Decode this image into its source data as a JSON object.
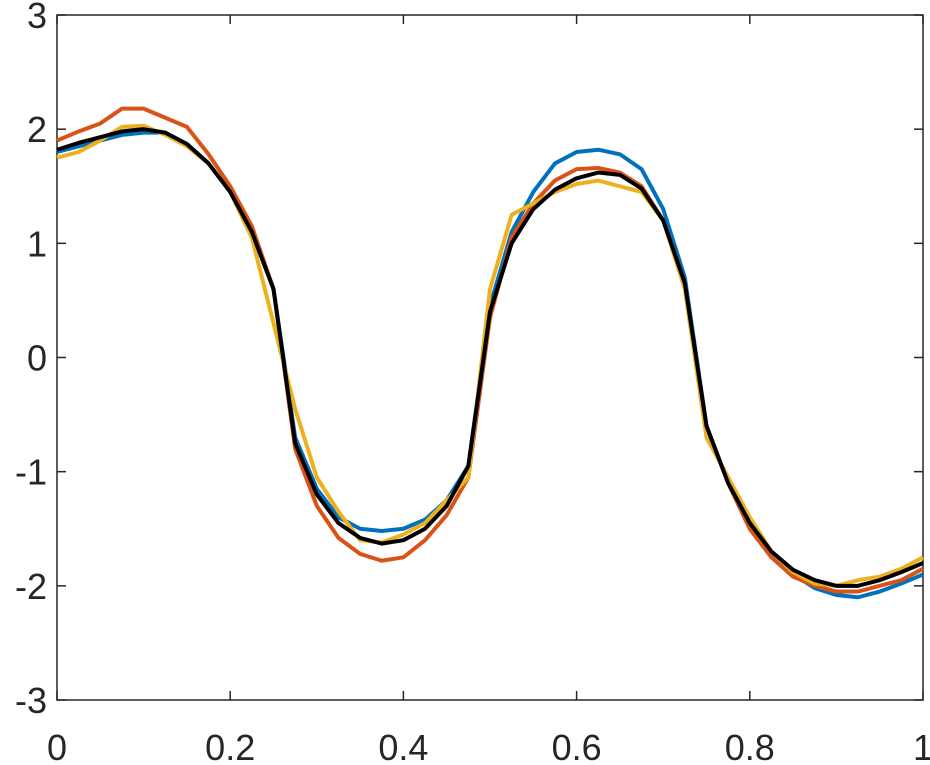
{
  "chart_data": {
    "type": "line",
    "x": [
      0,
      0.025,
      0.05,
      0.075,
      0.1,
      0.125,
      0.15,
      0.175,
      0.2,
      0.225,
      0.25,
      0.275,
      0.3,
      0.325,
      0.35,
      0.375,
      0.4,
      0.425,
      0.45,
      0.475,
      0.5,
      0.525,
      0.55,
      0.575,
      0.6,
      0.625,
      0.65,
      0.675,
      0.7,
      0.725,
      0.75,
      0.775,
      0.8,
      0.825,
      0.85,
      0.875,
      0.9,
      0.925,
      0.95,
      0.975,
      1
    ],
    "series": [
      {
        "color": "#0072BD",
        "values": [
          1.8,
          1.85,
          1.9,
          1.95,
          1.97,
          1.97,
          1.87,
          1.7,
          1.45,
          1.1,
          0.6,
          -0.7,
          -1.15,
          -1.4,
          -1.5,
          -1.52,
          -1.5,
          -1.42,
          -1.25,
          -0.95,
          0.45,
          1.1,
          1.45,
          1.7,
          1.8,
          1.82,
          1.78,
          1.65,
          1.3,
          0.7,
          -0.6,
          -1.1,
          -1.5,
          -1.75,
          -1.9,
          -2.02,
          -2.08,
          -2.1,
          -2.05,
          -1.98,
          -1.9
        ]
      },
      {
        "color": "#D95319",
        "values": [
          1.9,
          1.98,
          2.05,
          2.18,
          2.18,
          2.1,
          2.02,
          1.78,
          1.5,
          1.15,
          0.6,
          -0.8,
          -1.3,
          -1.58,
          -1.72,
          -1.78,
          -1.75,
          -1.6,
          -1.38,
          -1.05,
          0.35,
          1.05,
          1.35,
          1.55,
          1.65,
          1.66,
          1.62,
          1.5,
          1.2,
          0.65,
          -0.6,
          -1.1,
          -1.5,
          -1.75,
          -1.92,
          -2.0,
          -2.05,
          -2.05,
          -2.0,
          -1.95,
          -1.85
        ]
      },
      {
        "color": "#EDB120",
        "values": [
          1.75,
          1.8,
          1.9,
          2.02,
          2.03,
          1.95,
          1.85,
          1.7,
          1.45,
          1.05,
          0.3,
          -0.45,
          -1.05,
          -1.35,
          -1.6,
          -1.62,
          -1.55,
          -1.45,
          -1.25,
          -1.05,
          0.6,
          1.25,
          1.35,
          1.45,
          1.52,
          1.55,
          1.5,
          1.45,
          1.2,
          0.6,
          -0.7,
          -1.05,
          -1.4,
          -1.7,
          -1.88,
          -1.98,
          -2.0,
          -1.95,
          -1.92,
          -1.85,
          -1.75
        ]
      },
      {
        "color": "#000000",
        "values": [
          1.82,
          1.88,
          1.93,
          1.98,
          2.0,
          1.97,
          1.87,
          1.7,
          1.45,
          1.1,
          0.6,
          -0.75,
          -1.2,
          -1.45,
          -1.58,
          -1.63,
          -1.6,
          -1.5,
          -1.3,
          -0.95,
          0.4,
          1.0,
          1.3,
          1.47,
          1.57,
          1.62,
          1.6,
          1.48,
          1.2,
          0.65,
          -0.6,
          -1.1,
          -1.45,
          -1.7,
          -1.86,
          -1.95,
          -2.0,
          -2.0,
          -1.95,
          -1.88,
          -1.8
        ]
      }
    ],
    "xlim": [
      0,
      1
    ],
    "xticks": [
      0,
      0.2,
      0.4,
      0.6,
      0.8,
      1
    ],
    "ylim": [
      -3,
      3
    ],
    "yticks": [
      -3,
      -2,
      -1,
      0,
      1,
      2,
      3
    ],
    "grid": false
  }
}
